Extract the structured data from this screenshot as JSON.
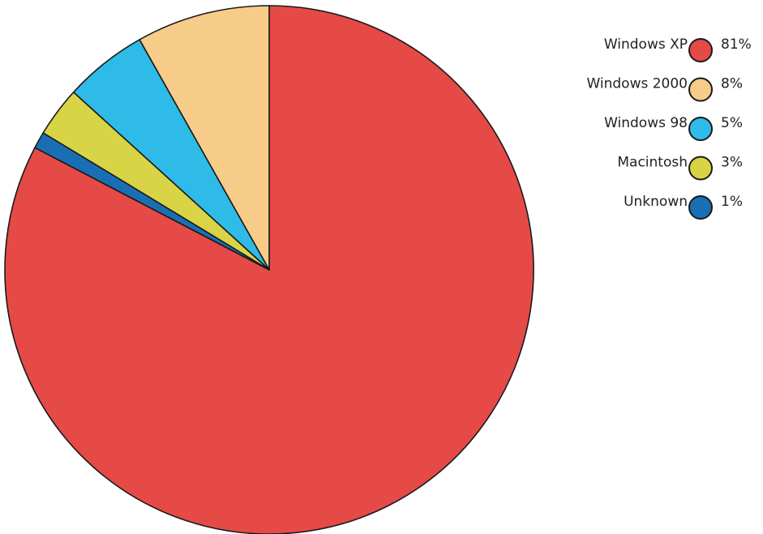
{
  "chart_data": {
    "type": "pie",
    "legend_position": "top-right",
    "slices": [
      {
        "label": "Windows XP",
        "value": 81,
        "display": "81%",
        "color": "#e54a47"
      },
      {
        "label": "Windows 2000",
        "value": 8,
        "display": "8%",
        "color": "#f7cc89"
      },
      {
        "label": "Windows 98",
        "value": 5,
        "display": "5%",
        "color": "#2fbbe8"
      },
      {
        "label": "Macintosh",
        "value": 3,
        "display": "3%",
        "color": "#d9d446"
      },
      {
        "label": "Unknown",
        "value": 1,
        "display": "1%",
        "color": "#1a6fb4"
      }
    ]
  }
}
